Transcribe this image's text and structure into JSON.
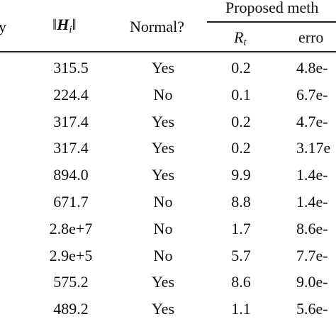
{
  "table": {
    "header": {
      "col0": "y",
      "norm": {
        "left": "‖",
        "base": "H",
        "sub": "i",
        "right": "‖"
      },
      "normal": "Normal?",
      "group": "Proposed meth",
      "rt": {
        "base": "R",
        "sub": "t"
      },
      "error": "erro"
    },
    "rows": [
      [
        "315.5",
        "Yes",
        "0.2",
        "4.8e-"
      ],
      [
        "224.4",
        "No",
        "0.1",
        "6.7e-"
      ],
      [
        "317.4",
        "Yes",
        "0.2",
        "4.7e-"
      ],
      [
        "317.4",
        "Yes",
        "0.2",
        "3.17e"
      ],
      [
        "894.0",
        "Yes",
        "9.9",
        "1.4e-"
      ],
      [
        "671.7",
        "No",
        "8.8",
        "1.4e-"
      ],
      [
        "2.8e+7",
        "No",
        "1.7",
        "8.6e-"
      ],
      [
        "2.9e+5",
        "No",
        "5.7",
        "7.7e-"
      ],
      [
        "575.2",
        "Yes",
        "8.6",
        "9.0e-"
      ],
      [
        "489.2",
        "Yes",
        "1.1",
        "5.6e-"
      ]
    ]
  }
}
